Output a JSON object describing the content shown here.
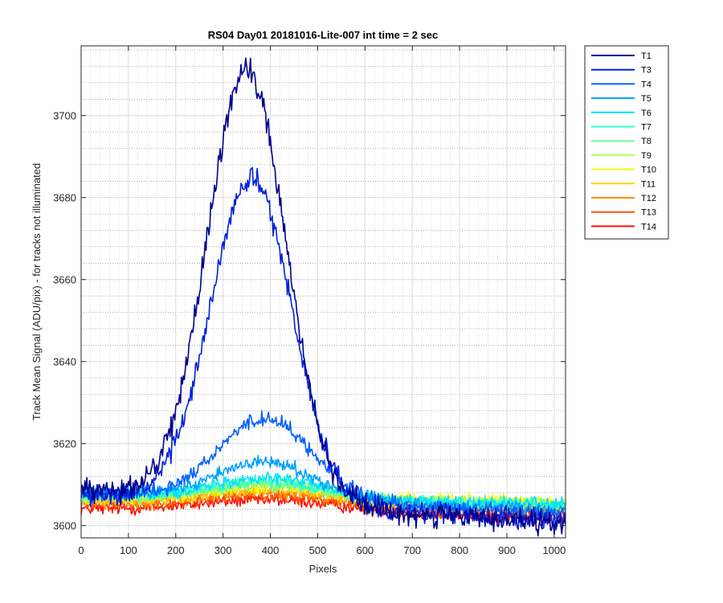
{
  "chart_data": {
    "type": "line",
    "title": "RS04 Day01 20181016-Lite-007 int time = 2 sec",
    "xlabel": "Pixels",
    "ylabel": "Track Mean Signal (ADU/pix) - for tracks not illuminated",
    "xlim": [
      0,
      1024
    ],
    "ylim": [
      3597,
      3717
    ],
    "xticks": [
      0,
      100,
      200,
      300,
      400,
      500,
      600,
      700,
      800,
      900,
      1000
    ],
    "yticks": [
      3600,
      3620,
      3640,
      3660,
      3680,
      3700
    ],
    "grid": true,
    "minor_grid": true,
    "legend_position": "outside-top-right",
    "x_samples": [
      0,
      1024
    ],
    "series": [
      {
        "name": "T1",
        "color": "#00008f",
        "baseline": 3609,
        "peak": 3714,
        "center": 350,
        "width": 175,
        "end": 3600
      },
      {
        "name": "T3",
        "color": "#0020df",
        "baseline": 3608,
        "peak": 3687,
        "center": 360,
        "width": 180,
        "end": 3601
      },
      {
        "name": "T4",
        "color": "#0060ff",
        "baseline": 3608,
        "peak": 3628,
        "center": 390,
        "width": 210,
        "end": 3603
      },
      {
        "name": "T5",
        "color": "#00a0ff",
        "baseline": 3608,
        "peak": 3617,
        "center": 390,
        "width": 220,
        "end": 3604
      },
      {
        "name": "T6",
        "color": "#00e0ff",
        "baseline": 3608,
        "peak": 3613,
        "center": 400,
        "width": 230,
        "end": 3605
      },
      {
        "name": "T7",
        "color": "#30ffcf",
        "baseline": 3608,
        "peak": 3612,
        "center": 400,
        "width": 240,
        "end": 3605
      },
      {
        "name": "T8",
        "color": "#70ff8f",
        "baseline": 3607,
        "peak": 3611,
        "center": 400,
        "width": 250,
        "end": 3605
      },
      {
        "name": "T9",
        "color": "#afff50",
        "baseline": 3607,
        "peak": 3611,
        "center": 400,
        "width": 260,
        "end": 3605
      },
      {
        "name": "T10",
        "color": "#efff10",
        "baseline": 3607,
        "peak": 3610,
        "center": 400,
        "width": 270,
        "end": 3606
      },
      {
        "name": "T11",
        "color": "#ffcf00",
        "baseline": 3606,
        "peak": 3609,
        "center": 400,
        "width": 280,
        "end": 3605
      },
      {
        "name": "T12",
        "color": "#ff8f00",
        "baseline": 3606,
        "peak": 3609,
        "center": 400,
        "width": 290,
        "end": 3604
      },
      {
        "name": "T13",
        "color": "#ff5000",
        "baseline": 3605,
        "peak": 3608,
        "center": 400,
        "width": 300,
        "end": 3603
      },
      {
        "name": "T14",
        "color": "#ff1000",
        "baseline": 3604,
        "peak": 3607,
        "center": 400,
        "width": 310,
        "end": 3602
      }
    ]
  }
}
